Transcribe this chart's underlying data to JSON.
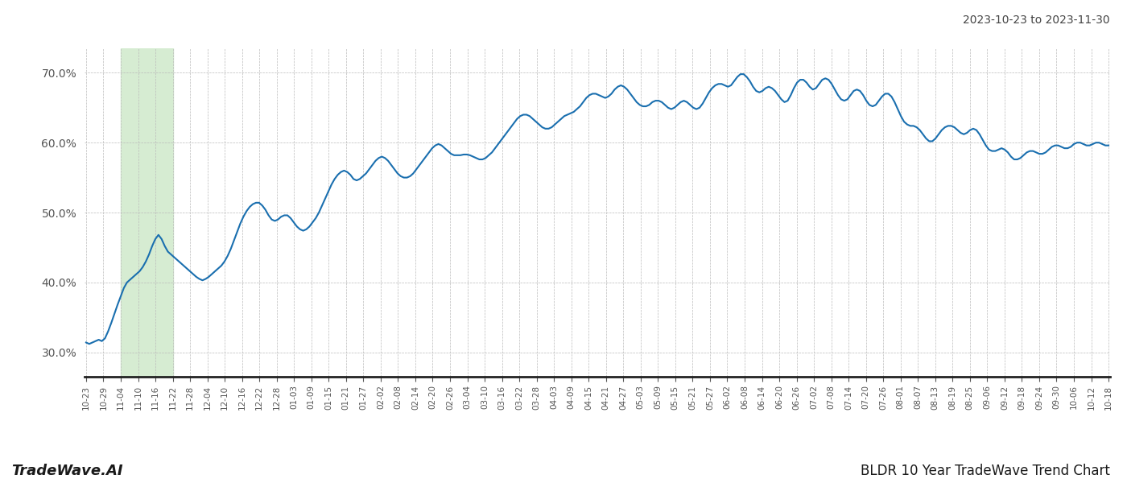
{
  "title_right": "2023-10-23 to 2023-11-30",
  "footer_left": "TradeWave.AI",
  "footer_right": "BLDR 10 Year TradeWave Trend Chart",
  "ylim": [
    0.265,
    0.735
  ],
  "yticks": [
    0.3,
    0.4,
    0.5,
    0.6,
    0.7
  ],
  "ytick_labels": [
    "30.0%",
    "40.0%",
    "50.0%",
    "60.0%",
    "70.0%"
  ],
  "line_color": "#1a6faf",
  "line_width": 1.5,
  "bg_color": "#ffffff",
  "grid_color": "#bbbbbb",
  "shade_color": "#d6ecd2",
  "x_labels": [
    "10-23",
    "10-29",
    "11-04",
    "11-10",
    "11-16",
    "11-22",
    "11-28",
    "12-04",
    "12-10",
    "12-16",
    "12-22",
    "12-28",
    "01-03",
    "01-09",
    "01-15",
    "01-21",
    "01-27",
    "02-02",
    "02-08",
    "02-14",
    "02-20",
    "02-26",
    "03-04",
    "03-10",
    "03-16",
    "03-22",
    "03-28",
    "04-03",
    "04-09",
    "04-15",
    "04-21",
    "04-27",
    "05-03",
    "05-09",
    "05-15",
    "05-21",
    "05-27",
    "06-02",
    "06-08",
    "06-14",
    "06-20",
    "06-26",
    "07-02",
    "07-08",
    "07-14",
    "07-20",
    "07-26",
    "08-01",
    "08-07",
    "08-13",
    "08-19",
    "08-25",
    "09-06",
    "09-12",
    "09-18",
    "09-24",
    "09-30",
    "10-06",
    "10-12",
    "10-18"
  ],
  "shade_label_start": "11-04",
  "shade_label_end": "11-22",
  "values": [
    0.314,
    0.312,
    0.314,
    0.316,
    0.318,
    0.316,
    0.32,
    0.33,
    0.342,
    0.355,
    0.368,
    0.38,
    0.392,
    0.4,
    0.404,
    0.408,
    0.412,
    0.416,
    0.422,
    0.43,
    0.44,
    0.452,
    0.462,
    0.468,
    0.462,
    0.452,
    0.444,
    0.44,
    0.436,
    0.432,
    0.428,
    0.424,
    0.42,
    0.416,
    0.412,
    0.408,
    0.405,
    0.403,
    0.405,
    0.408,
    0.412,
    0.416,
    0.42,
    0.424,
    0.43,
    0.438,
    0.448,
    0.46,
    0.472,
    0.484,
    0.494,
    0.502,
    0.508,
    0.512,
    0.514,
    0.514,
    0.51,
    0.504,
    0.496,
    0.49,
    0.488,
    0.49,
    0.494,
    0.496,
    0.496,
    0.492,
    0.486,
    0.48,
    0.476,
    0.474,
    0.476,
    0.48,
    0.486,
    0.492,
    0.5,
    0.51,
    0.52,
    0.53,
    0.54,
    0.548,
    0.554,
    0.558,
    0.56,
    0.558,
    0.554,
    0.548,
    0.546,
    0.548,
    0.552,
    0.556,
    0.562,
    0.568,
    0.574,
    0.578,
    0.58,
    0.578,
    0.574,
    0.568,
    0.562,
    0.556,
    0.552,
    0.55,
    0.55,
    0.552,
    0.556,
    0.562,
    0.568,
    0.574,
    0.58,
    0.586,
    0.592,
    0.596,
    0.598,
    0.596,
    0.592,
    0.588,
    0.584,
    0.582,
    0.582,
    0.582,
    0.583,
    0.583,
    0.582,
    0.58,
    0.578,
    0.576,
    0.576,
    0.578,
    0.582,
    0.586,
    0.592,
    0.598,
    0.604,
    0.61,
    0.616,
    0.622,
    0.628,
    0.634,
    0.638,
    0.64,
    0.64,
    0.638,
    0.634,
    0.63,
    0.626,
    0.622,
    0.62,
    0.62,
    0.622,
    0.626,
    0.63,
    0.634,
    0.638,
    0.64,
    0.642,
    0.644,
    0.648,
    0.652,
    0.658,
    0.664,
    0.668,
    0.67,
    0.67,
    0.668,
    0.666,
    0.664,
    0.666,
    0.67,
    0.676,
    0.68,
    0.682,
    0.68,
    0.676,
    0.67,
    0.664,
    0.658,
    0.654,
    0.652,
    0.652,
    0.654,
    0.658,
    0.66,
    0.66,
    0.658,
    0.654,
    0.65,
    0.648,
    0.65,
    0.654,
    0.658,
    0.66,
    0.658,
    0.654,
    0.65,
    0.648,
    0.65,
    0.656,
    0.664,
    0.672,
    0.678,
    0.682,
    0.684,
    0.684,
    0.682,
    0.68,
    0.682,
    0.688,
    0.694,
    0.698,
    0.698,
    0.694,
    0.688,
    0.68,
    0.674,
    0.672,
    0.674,
    0.678,
    0.68,
    0.678,
    0.674,
    0.668,
    0.662,
    0.658,
    0.66,
    0.668,
    0.678,
    0.686,
    0.69,
    0.69,
    0.686,
    0.68,
    0.676,
    0.678,
    0.684,
    0.69,
    0.692,
    0.69,
    0.684,
    0.676,
    0.668,
    0.662,
    0.66,
    0.662,
    0.668,
    0.674,
    0.676,
    0.674,
    0.668,
    0.66,
    0.654,
    0.652,
    0.654,
    0.66,
    0.666,
    0.67,
    0.67,
    0.666,
    0.658,
    0.648,
    0.638,
    0.63,
    0.626,
    0.624,
    0.624,
    0.622,
    0.618,
    0.612,
    0.606,
    0.602,
    0.602,
    0.606,
    0.612,
    0.618,
    0.622,
    0.624,
    0.624,
    0.622,
    0.618,
    0.614,
    0.612,
    0.614,
    0.618,
    0.62,
    0.618,
    0.612,
    0.604,
    0.596,
    0.59,
    0.588,
    0.588,
    0.59,
    0.592,
    0.59,
    0.586,
    0.58,
    0.576,
    0.576,
    0.578,
    0.582,
    0.586,
    0.588,
    0.588,
    0.586,
    0.584,
    0.584,
    0.586,
    0.59,
    0.594,
    0.596,
    0.596,
    0.594,
    0.592,
    0.592,
    0.594,
    0.598,
    0.6,
    0.6,
    0.598,
    0.596,
    0.596,
    0.598,
    0.6,
    0.6,
    0.598,
    0.596,
    0.596
  ]
}
